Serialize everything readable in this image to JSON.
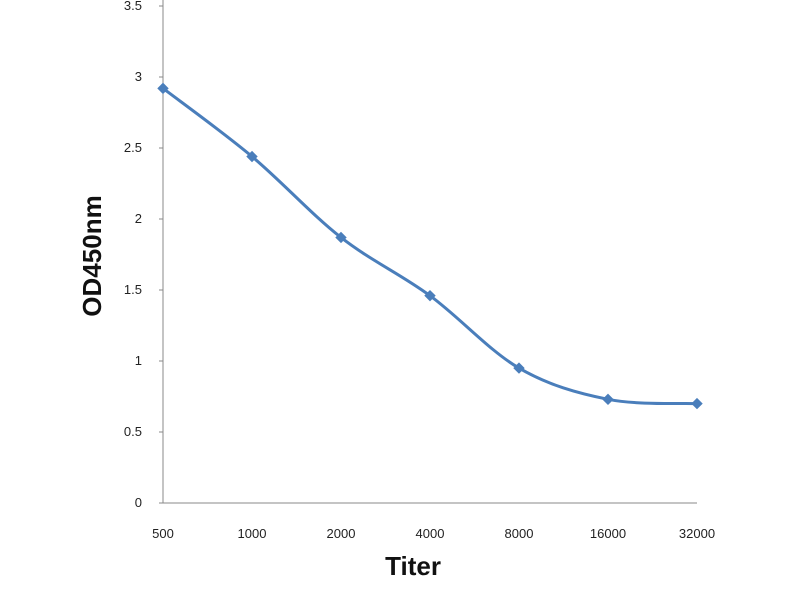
{
  "chart_data": {
    "type": "line",
    "title": "",
    "xlabel": "Titer",
    "ylabel": "OD450nm",
    "categories": [
      "500",
      "1000",
      "2000",
      "4000",
      "8000",
      "16000",
      "32000"
    ],
    "series": [
      {
        "values": [
          2.92,
          2.44,
          1.87,
          1.46,
          0.95,
          0.73,
          0.7
        ],
        "color": "#4a7ebb",
        "marker": "diamond",
        "smooth": true
      }
    ],
    "ylim": [
      0,
      3.5
    ],
    "yticks": [
      "0",
      "0.5",
      "1",
      "1.5",
      "2",
      "2.5",
      "3",
      "3.5"
    ],
    "grid": false,
    "legend": "none"
  }
}
